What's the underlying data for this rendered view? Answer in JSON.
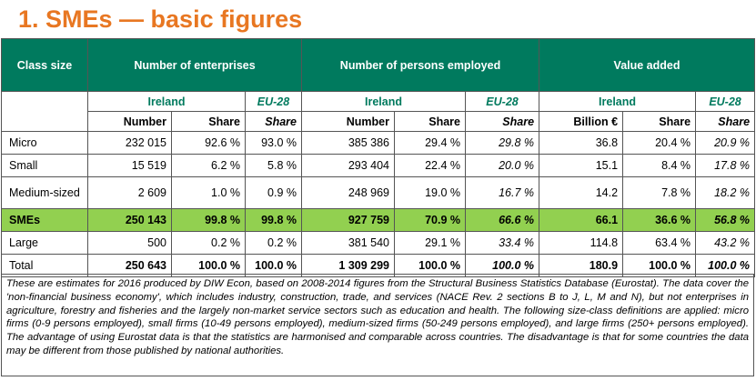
{
  "title": "1. SMEs — basic figures",
  "header": {
    "class_size": "Class size",
    "enterprises": "Number of enterprises",
    "employed": "Number of persons employed",
    "value_added": "Value added"
  },
  "subheader": {
    "ireland": "Ireland",
    "eu28": "EU-28"
  },
  "columns": {
    "number": "Number",
    "share": "Share",
    "billion": "Billion €"
  },
  "rows": [
    {
      "label": "Micro",
      "ent_num": "232 015",
      "ent_share": "92.6 %",
      "ent_eu": "93.0 %",
      "emp_num": "385 386",
      "emp_share": "29.4 %",
      "emp_eu": "29.8 %",
      "va_bn": "36.8",
      "va_share": "20.4 %",
      "va_eu": "20.9 %"
    },
    {
      "label": "Small",
      "ent_num": "15 519",
      "ent_share": "6.2 %",
      "ent_eu": "5.8 %",
      "emp_num": "293 404",
      "emp_share": "22.4 %",
      "emp_eu": "20.0 %",
      "va_bn": "15.1",
      "va_share": "8.4 %",
      "va_eu": "17.8 %"
    },
    {
      "label": "Medium-sized",
      "ent_num": "2 609",
      "ent_share": "1.0 %",
      "ent_eu": "0.9 %",
      "emp_num": "248 969",
      "emp_share": "19.0 %",
      "emp_eu": "16.7 %",
      "va_bn": "14.2",
      "va_share": "7.8 %",
      "va_eu": "18.2 %"
    },
    {
      "label": "SMEs",
      "ent_num": "250 143",
      "ent_share": "99.8 %",
      "ent_eu": "99.8 %",
      "emp_num": "927 759",
      "emp_share": "70.9 %",
      "emp_eu": "66.6 %",
      "va_bn": "66.1",
      "va_share": "36.6 %",
      "va_eu": "56.8 %"
    },
    {
      "label": "Large",
      "ent_num": "500",
      "ent_share": "0.2 %",
      "ent_eu": "0.2 %",
      "emp_num": "381 540",
      "emp_share": "29.1 %",
      "emp_eu": "33.4 %",
      "va_bn": "114.8",
      "va_share": "63.4 %",
      "va_eu": "43.2 %"
    },
    {
      "label": "Total",
      "ent_num": "250 643",
      "ent_share": "100.0 %",
      "ent_eu": "100.0 %",
      "emp_num": "1 309 299",
      "emp_share": "100.0 %",
      "emp_eu": "100.0 %",
      "va_bn": "180.9",
      "va_share": "100.0 %",
      "va_eu": "100.0 %"
    }
  ],
  "note": "These are estimates for 2016 produced by DIW Econ, based on 2008-2014 figures from the Structural Business Statistics Database (Eurostat). The data cover the 'non-financial business economy', which includes industry, construction, trade, and services (NACE Rev. 2 sections B to J, L, M and N), but not enterprises in agriculture, forestry and fisheries and the largely non-market service sectors such as education and health. The following size-class definitions are applied: micro firms (0-9 persons employed), small firms (10-49 persons employed), medium-sized firms (50-249 persons employed), and large firms (250+ persons employed). The advantage of using Eurostat data is that the statistics are harmonised and comparable across countries. The disadvantage is that for some countries the data may be different from those published by national authorities.",
  "colors": {
    "title": "#e87722",
    "header_bg": "#007a5e",
    "sme_row_bg": "#92d050"
  }
}
